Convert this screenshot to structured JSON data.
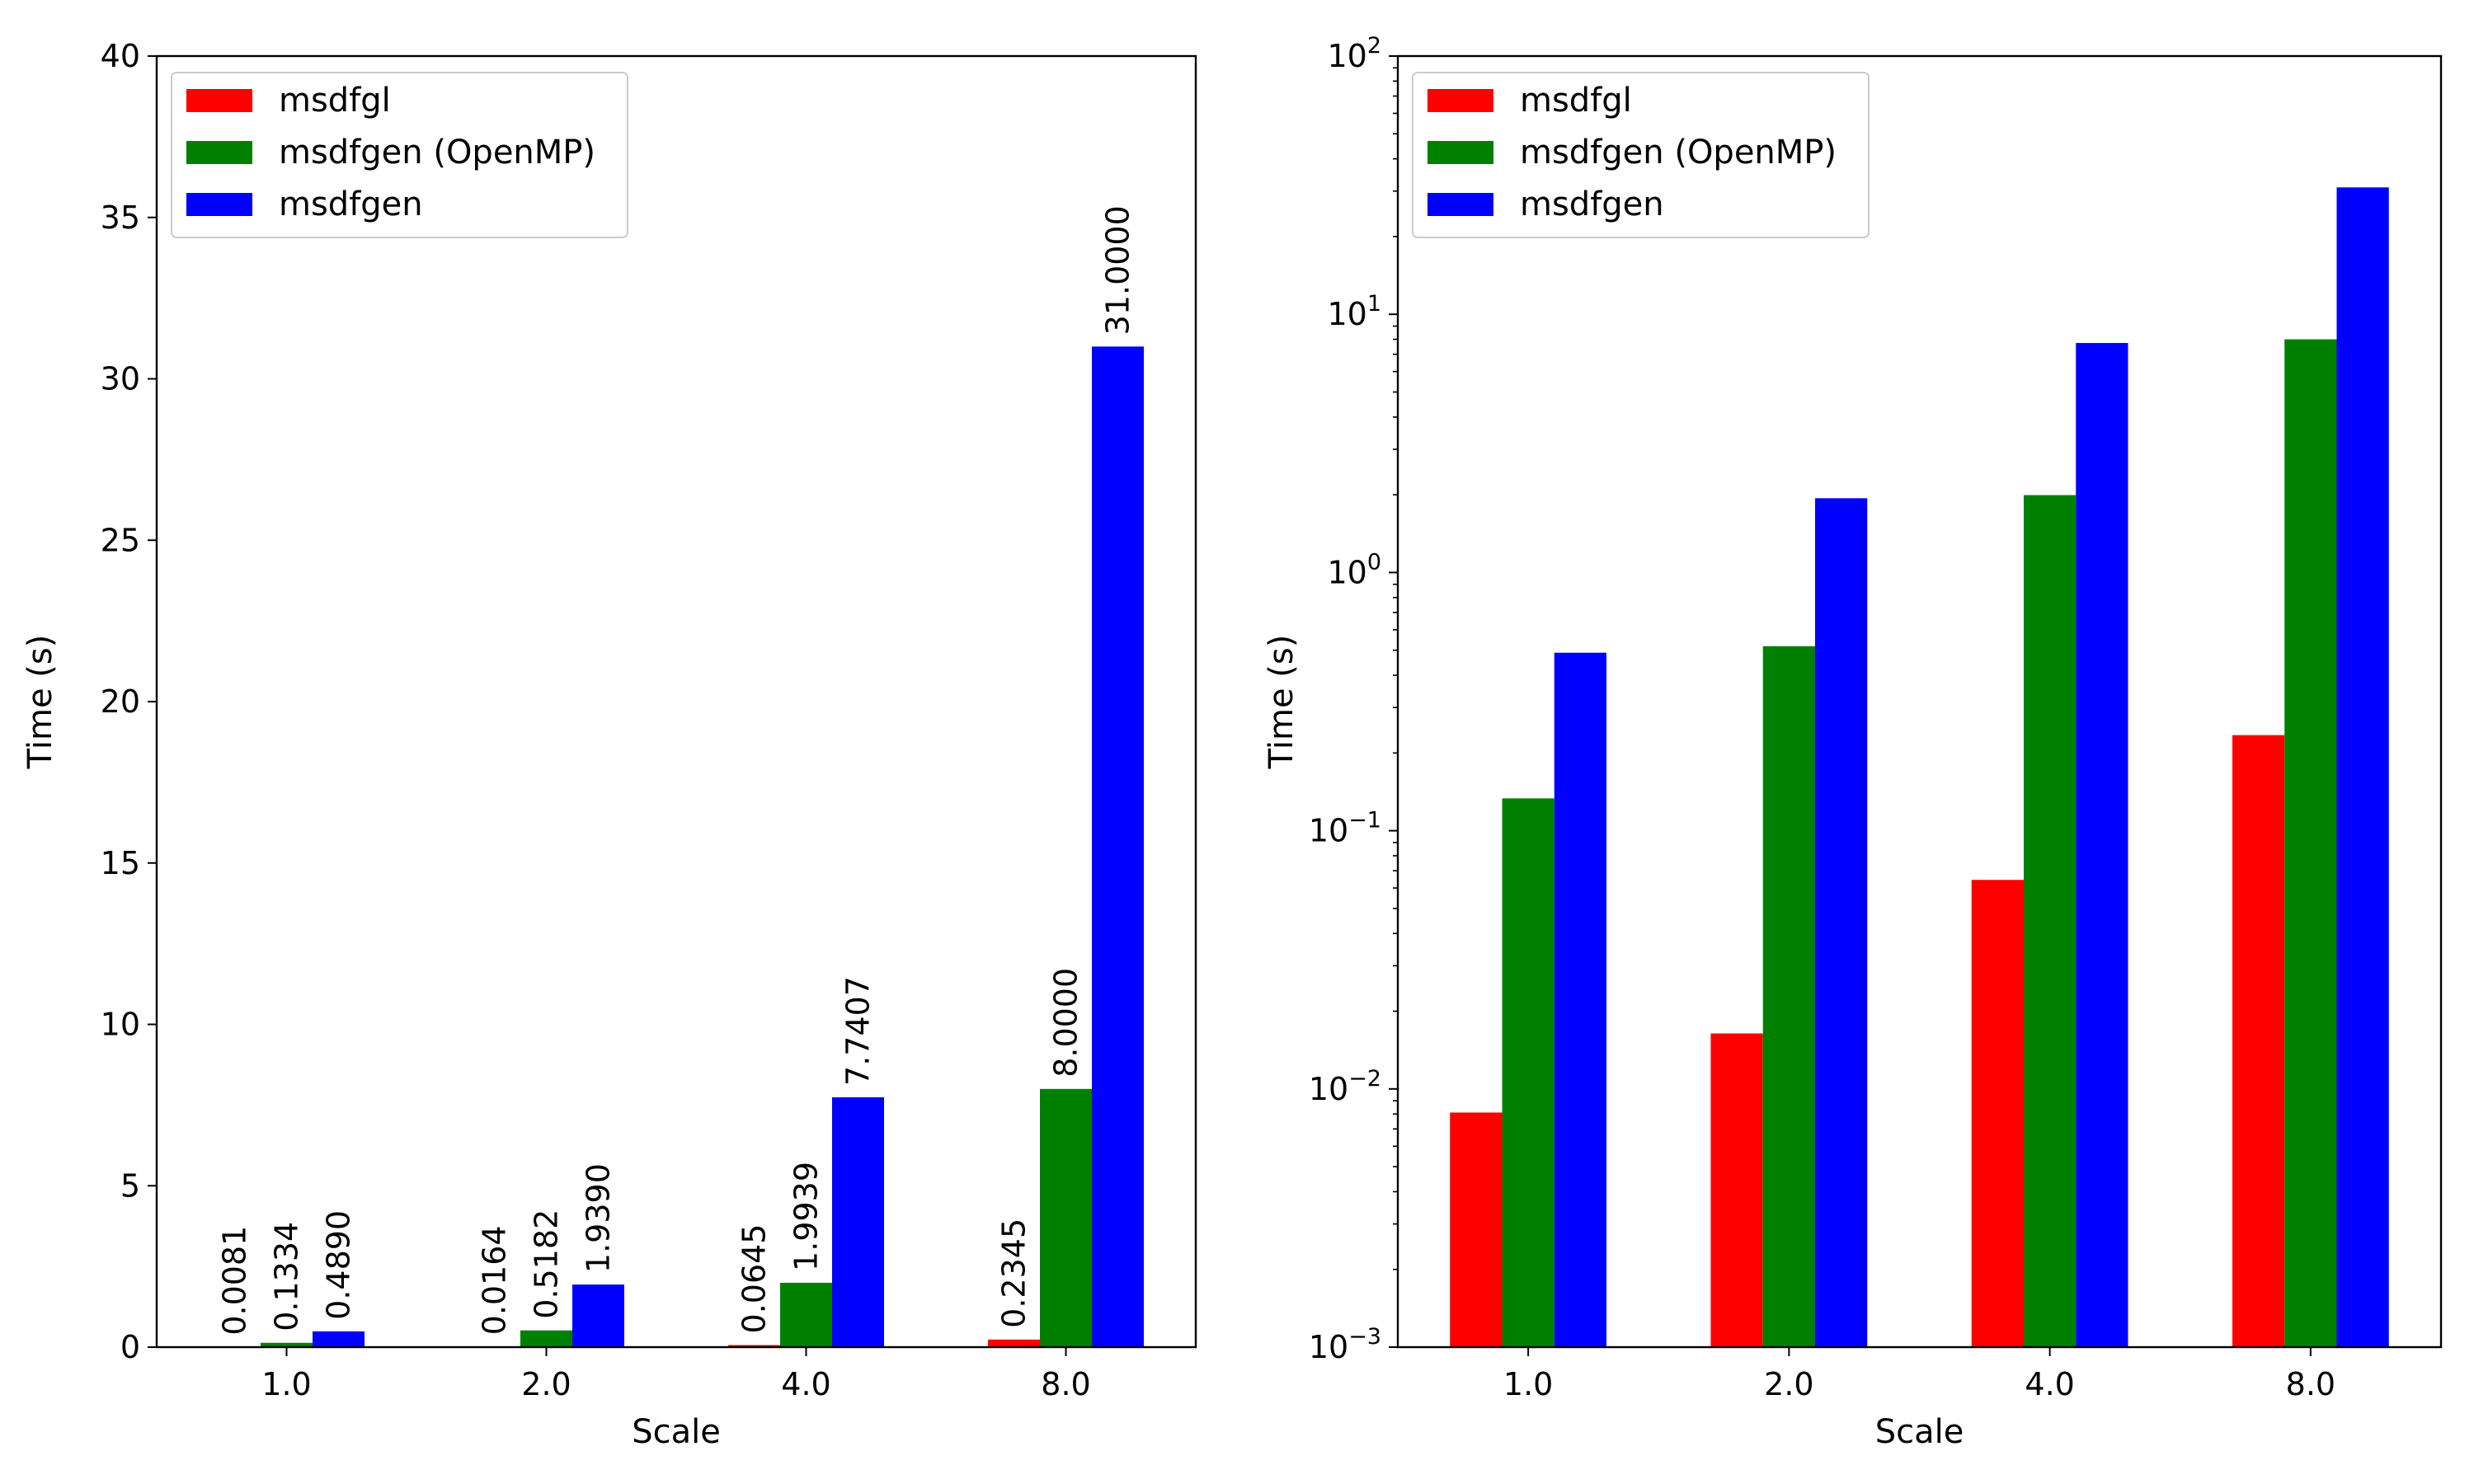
{
  "chart_data": [
    {
      "type": "bar",
      "scale": "linear",
      "categories": [
        "1.0",
        "2.0",
        "4.0",
        "8.0"
      ],
      "series": [
        {
          "name": "msdfgl",
          "color": "#ff0000",
          "values": [
            0.0081,
            0.0164,
            0.0645,
            0.2345
          ],
          "labels": [
            "0.0081",
            "0.0164",
            "0.0645",
            "0.2345"
          ]
        },
        {
          "name": "msdfgen (OpenMP)",
          "color": "#008000",
          "values": [
            0.1334,
            0.5182,
            1.9939,
            8.0
          ],
          "labels": [
            "0.1334",
            "0.5182",
            "1.9939",
            "8.0000"
          ]
        },
        {
          "name": "msdfgen",
          "color": "#0000ff",
          "values": [
            0.489,
            1.939,
            7.7407,
            31.0
          ],
          "labels": [
            "0.4890",
            "1.9390",
            "7.7407",
            "31.0000"
          ]
        }
      ],
      "xlabel": "Scale",
      "ylabel": "Time (s)",
      "ylim": [
        0,
        40
      ],
      "yticks": [
        {
          "value": 0,
          "label": "0"
        },
        {
          "value": 5,
          "label": "5"
        },
        {
          "value": 10,
          "label": "10"
        },
        {
          "value": 15,
          "label": "15"
        },
        {
          "value": 20,
          "label": "20"
        },
        {
          "value": 25,
          "label": "25"
        },
        {
          "value": 30,
          "label": "30"
        },
        {
          "value": 35,
          "label": "35"
        },
        {
          "value": 40,
          "label": "40"
        }
      ],
      "legend": "top-left",
      "grid": false,
      "data_labels": true
    },
    {
      "type": "bar",
      "scale": "log",
      "categories": [
        "1.0",
        "2.0",
        "4.0",
        "8.0"
      ],
      "series": [
        {
          "name": "msdfgl",
          "color": "#ff0000",
          "values": [
            0.0081,
            0.0164,
            0.0645,
            0.2345
          ]
        },
        {
          "name": "msdfgen (OpenMP)",
          "color": "#008000",
          "values": [
            0.1334,
            0.5182,
            1.9939,
            8.0
          ]
        },
        {
          "name": "msdfgen",
          "color": "#0000ff",
          "values": [
            0.489,
            1.939,
            7.7407,
            31.0
          ]
        }
      ],
      "xlabel": "Scale",
      "ylabel": "Time (s)",
      "ylim": [
        0.001,
        100
      ],
      "yticks": [
        {
          "value": 0.001,
          "base": "10",
          "exp": "−3"
        },
        {
          "value": 0.01,
          "base": "10",
          "exp": "−2"
        },
        {
          "value": 0.1,
          "base": "10",
          "exp": "−1"
        },
        {
          "value": 1,
          "base": "10",
          "exp": "0"
        },
        {
          "value": 10,
          "base": "10",
          "exp": "1"
        },
        {
          "value": 100,
          "base": "10",
          "exp": "2"
        }
      ],
      "legend": "top-left",
      "grid": false,
      "data_labels": false
    }
  ]
}
